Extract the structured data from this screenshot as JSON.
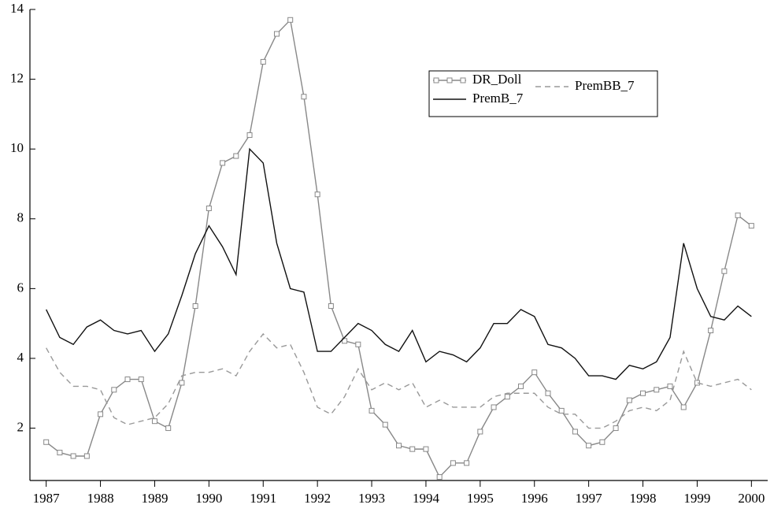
{
  "chart_data": {
    "type": "line",
    "x": [
      1987,
      1987.25,
      1987.5,
      1987.75,
      1988,
      1988.25,
      1988.5,
      1988.75,
      1989,
      1989.25,
      1989.5,
      1989.75,
      1990,
      1990.25,
      1990.5,
      1990.75,
      1991,
      1991.25,
      1991.5,
      1991.75,
      1992,
      1992.25,
      1992.5,
      1992.75,
      1993,
      1993.25,
      1993.5,
      1993.75,
      1994,
      1994.25,
      1994.5,
      1994.75,
      1995,
      1995.25,
      1995.5,
      1995.75,
      1996,
      1996.25,
      1996.5,
      1996.75,
      1997,
      1997.25,
      1997.5,
      1997.75,
      1998,
      1998.25,
      1998.5,
      1998.75,
      1999,
      1999.25,
      1999.5,
      1999.75,
      2000
    ],
    "series": [
      {
        "name": "DR_Doll",
        "color": "#888888",
        "marker": "square",
        "dashed": false,
        "values": [
          1.6,
          1.3,
          1.2,
          1.2,
          2.4,
          3.1,
          3.4,
          3.4,
          2.2,
          2.0,
          3.3,
          5.5,
          8.3,
          9.6,
          9.8,
          10.4,
          12.5,
          13.3,
          13.7,
          11.5,
          8.7,
          5.5,
          4.5,
          4.4,
          2.5,
          2.1,
          1.5,
          1.4,
          1.4,
          0.6,
          1.0,
          1.0,
          1.9,
          2.6,
          2.9,
          3.2,
          3.6,
          3.0,
          2.5,
          1.9,
          1.5,
          1.6,
          2.0,
          2.8,
          3.0,
          3.1,
          3.2,
          2.6,
          3.3,
          4.8,
          6.5,
          8.1,
          7.8
        ]
      },
      {
        "name": "PremBB_7",
        "color": "#999999",
        "marker": "none",
        "dashed": true,
        "values": [
          4.3,
          3.6,
          3.2,
          3.2,
          3.1,
          2.3,
          2.1,
          2.2,
          2.3,
          2.7,
          3.5,
          3.6,
          3.6,
          3.7,
          3.5,
          4.2,
          4.7,
          4.3,
          4.4,
          3.6,
          2.6,
          2.4,
          2.9,
          3.7,
          3.1,
          3.3,
          3.1,
          3.3,
          2.6,
          2.8,
          2.6,
          2.6,
          2.6,
          2.9,
          3.0,
          3.0,
          3.0,
          2.6,
          2.4,
          2.4,
          2.0,
          2.0,
          2.2,
          2.5,
          2.6,
          2.5,
          2.8,
          4.2,
          3.3,
          3.2,
          3.3,
          3.4,
          3.1
        ]
      },
      {
        "name": "PremB_7",
        "color": "#111111",
        "marker": "none",
        "dashed": false,
        "values": [
          5.4,
          4.6,
          4.4,
          4.9,
          5.1,
          4.8,
          4.7,
          4.8,
          4.2,
          4.7,
          5.8,
          7.0,
          7.8,
          7.2,
          6.4,
          10.0,
          9.6,
          7.3,
          6.0,
          5.9,
          4.2,
          4.2,
          4.6,
          5.0,
          4.8,
          4.4,
          4.2,
          4.8,
          3.9,
          4.2,
          4.1,
          3.9,
          4.3,
          5.0,
          5.0,
          5.4,
          5.2,
          4.4,
          4.3,
          4.0,
          3.5,
          3.5,
          3.4,
          3.8,
          3.7,
          3.9,
          4.6,
          7.3,
          6.0,
          5.2,
          5.1,
          5.5,
          5.2
        ]
      }
    ],
    "xlim": [
      1986.7,
      2000.3
    ],
    "xticks": [
      1987,
      1988,
      1989,
      1990,
      1991,
      1992,
      1993,
      1994,
      1995,
      1996,
      1997,
      1998,
      1999,
      2000
    ],
    "ylim": [
      0.5,
      14
    ],
    "yticks": [
      2,
      4,
      6,
      8,
      10,
      12,
      14
    ],
    "grid": false,
    "legend": "upper-right"
  }
}
